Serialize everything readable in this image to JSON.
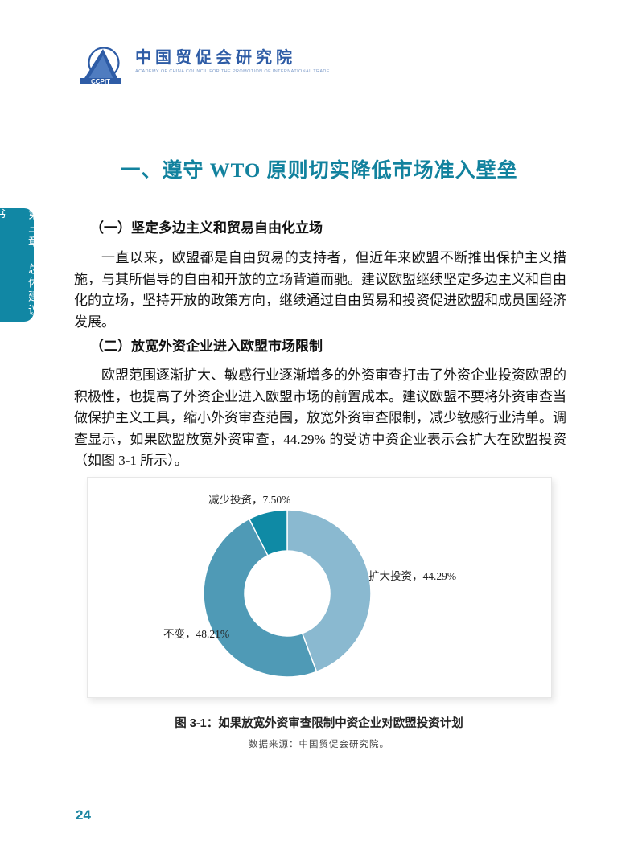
{
  "logo": {
    "acronym": "CCPIT",
    "name_cn": "中国贸促会研究院",
    "name_en": "ACADEMY OF CHINA COUNCIL FOR THE PROMOTION OF INTERNATIONAL TRADE",
    "brand_color": "#2e5ca6"
  },
  "chapter_tab": {
    "text": "第三章　总体建议书",
    "color": "#1187A4"
  },
  "title": "一、遵守 WTO 原则切实降低市场准入壁垒",
  "title_color": "#12829E",
  "sections": [
    {
      "heading": "（一）坚定多边主义和贸易自由化立场",
      "body": "一直以来，欧盟都是自由贸易的支持者，但近年来欧盟不断推出保护主义措施，与其所倡导的自由和开放的立场背道而驰。建议欧盟继续坚定多边主义和自由化的立场，坚持开放的政策方向，继续通过自由贸易和投资促进欧盟和成员国经济发展。"
    },
    {
      "heading": "（二）放宽外资企业进入欧盟市场限制",
      "body": "欧盟范围逐渐扩大、敏感行业逐渐增多的外资审查打击了外资企业投资欧盟的积极性，也提高了外资企业进入欧盟市场的前置成本。建议欧盟不要将外资审查当做保护主义工具，缩小外资审查范围，放宽外资审查限制，减少敏感行业清单。调查显示，如果欧盟放宽外资审查，44.29% 的受访中资企业表示会扩大在欧盟投资（如图 3-1 所示）。"
    }
  ],
  "figure": {
    "caption": "图 3-1：如果放宽外资审查限制中资企业对欧盟投资计划",
    "source": "数据来源：中国贸促会研究院。"
  },
  "chart_data": {
    "type": "pie",
    "donut": true,
    "start_angle": "top",
    "direction": "clockwise",
    "legend_position": "none",
    "slices": [
      {
        "label": "扩大投资",
        "value": 44.29,
        "display": "扩大投资，44.29%",
        "color": "#8AB9D0"
      },
      {
        "label": "不变",
        "value": 48.21,
        "display": "不变，48.21%",
        "color": "#4F9AB6"
      },
      {
        "label": "减少投资",
        "value": 7.5,
        "display": "减少投资，7.50%",
        "color": "#0F8AA5"
      }
    ]
  },
  "page": {
    "number": "24"
  }
}
